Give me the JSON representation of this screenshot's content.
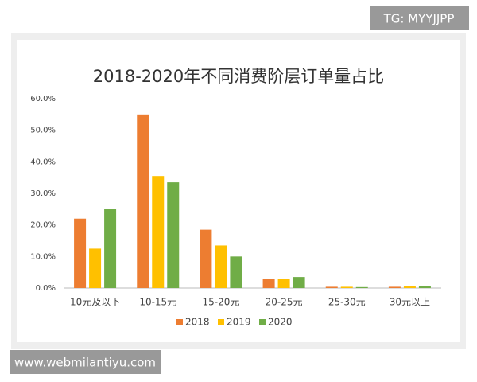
{
  "chart_data": {
    "type": "bar",
    "title": "2018-2020年不同消费阶层订单量占比",
    "categories": [
      "10元及以下",
      "10-15元",
      "15-20元",
      "20-25元",
      "25-30元",
      "30元以上"
    ],
    "series": [
      {
        "name": "2018",
        "color": "#ed7d31",
        "values": [
          22,
          55,
          18.5,
          2.8,
          0.4,
          0.4
        ]
      },
      {
        "name": "2019",
        "color": "#ffc000",
        "values": [
          12.5,
          35.5,
          13.5,
          2.8,
          0.4,
          0.5
        ]
      },
      {
        "name": "2020",
        "color": "#70ad47",
        "values": [
          25,
          33.5,
          10,
          3.5,
          0.3,
          0.6
        ]
      }
    ],
    "ylim": [
      0,
      60
    ],
    "yticks": [
      {
        "value": 0,
        "label": "0.0%"
      },
      {
        "value": 10,
        "label": "10.0%"
      },
      {
        "value": 20,
        "label": "20.0%"
      },
      {
        "value": 30,
        "label": "30.0%"
      },
      {
        "value": 40,
        "label": "40.0%"
      },
      {
        "value": 50,
        "label": "50.0%"
      },
      {
        "value": 60,
        "label": "60.0%"
      }
    ],
    "grid": false,
    "legend": "bottom"
  },
  "watermarks": {
    "top": "TG: MYYJJPP",
    "bottom": "www.webmilantiyu.com"
  }
}
